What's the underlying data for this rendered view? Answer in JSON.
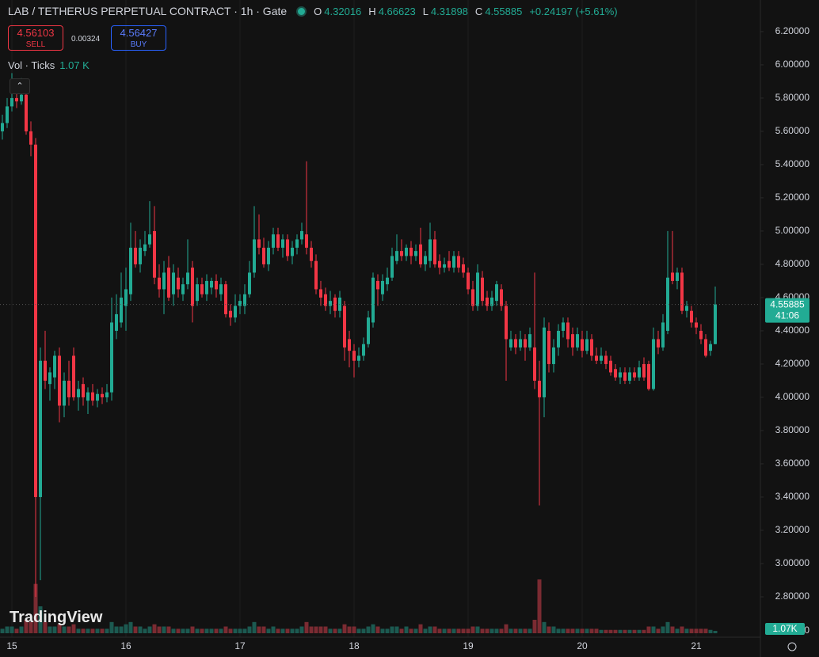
{
  "header": {
    "title": "LAB / TETHERUS PERPETUAL CONTRACT · 1h · Gate",
    "ohlc_labels": [
      "O",
      "H",
      "L",
      "C"
    ],
    "change": "+0.24197 (+5.61%)",
    "sell_price": 4.56103,
    "sell_label": "SELL",
    "spread": 0.00324,
    "buy_price": 4.56427,
    "buy_label": "BUY",
    "volume_indicator": "Vol · Ticks",
    "volume_indicator_value": "1.07 K",
    "countdown": "41:06",
    "watermark": "TradingView"
  },
  "chart_data": {
    "type": "candlestick",
    "categories": [
      null,
      null,
      "15",
      null,
      null,
      null,
      null,
      null,
      null,
      null,
      null,
      null,
      null,
      null,
      null,
      null,
      null,
      null,
      null,
      null,
      null,
      null,
      null,
      null,
      null,
      null,
      "16",
      null,
      null,
      null,
      null,
      null,
      null,
      null,
      null,
      null,
      null,
      null,
      null,
      null,
      null,
      null,
      null,
      null,
      null,
      null,
      null,
      null,
      null,
      null,
      "17",
      null,
      null,
      null,
      null,
      null,
      null,
      null,
      null,
      null,
      null,
      null,
      null,
      null,
      null,
      null,
      null,
      null,
      null,
      null,
      null,
      null,
      null,
      null,
      "18",
      null,
      null,
      null,
      null,
      null,
      null,
      null,
      null,
      null,
      null,
      null,
      null,
      null,
      null,
      null,
      null,
      null,
      null,
      null,
      null,
      null,
      null,
      null,
      "19",
      null,
      null,
      null,
      null,
      null,
      null,
      null,
      null,
      null,
      null,
      null,
      null,
      null,
      null,
      null,
      null,
      null,
      null,
      null,
      null,
      null,
      null,
      null,
      "20",
      null,
      null,
      null,
      null,
      null,
      null,
      null,
      null,
      null,
      null,
      null,
      null,
      null,
      null,
      null,
      null,
      null,
      null,
      null,
      null,
      null,
      null,
      null,
      "21",
      null,
      null,
      null,
      null
    ],
    "open": [
      5.6,
      5.65,
      5.75,
      5.8,
      5.78,
      5.82,
      5.6,
      5.52,
      3.4,
      4.22,
      4.08,
      4.12,
      4.25,
      3.95,
      4.1,
      4.25,
      4.0,
      4.08,
      3.98,
      4.03,
      3.98,
      4.02,
      4.0,
      4.03,
      4.4,
      4.45,
      4.55,
      4.62,
      4.9,
      4.8,
      4.88,
      4.92,
      5.0,
      4.72,
      4.65,
      4.78,
      4.62,
      4.72,
      4.62,
      4.68,
      4.78,
      4.58,
      4.68,
      4.62,
      4.66,
      4.7,
      4.62,
      4.68,
      4.52,
      4.48,
      4.55,
      4.55,
      4.62,
      4.75,
      4.95,
      4.9,
      4.8,
      4.9,
      4.98,
      4.9,
      4.95,
      4.85,
      4.9,
      4.95,
      4.98,
      4.9,
      4.82,
      4.65,
      4.62,
      4.55,
      4.6,
      4.52,
      4.55,
      4.35,
      4.28,
      4.22,
      4.25,
      4.32,
      4.45,
      4.7,
      4.62,
      4.68,
      4.72,
      4.82,
      4.88,
      4.85,
      4.9,
      4.85,
      4.92,
      4.8,
      4.82,
      4.95,
      4.82,
      4.78,
      4.82,
      4.78,
      4.85,
      4.8,
      4.75,
      4.65,
      4.55,
      4.72,
      4.6,
      4.55,
      4.58,
      4.65,
      4.55,
      4.3,
      4.35,
      4.3,
      4.35,
      4.3,
      4.3,
      4.1,
      4.0,
      4.4,
      4.2,
      4.3,
      4.4,
      4.45,
      4.38,
      4.3,
      4.35,
      4.28,
      4.35,
      4.25,
      4.22,
      4.25,
      4.22,
      4.17,
      4.12,
      4.15,
      4.1,
      4.15,
      4.12,
      4.2,
      4.2,
      4.05,
      4.35,
      4.3,
      4.4,
      4.75,
      4.7,
      4.75,
      4.52,
      4.52,
      4.45,
      4.4,
      4.35,
      4.28,
      4.32016
    ],
    "high": [
      5.7,
      5.8,
      5.95,
      5.88,
      5.92,
      5.84,
      5.66,
      5.56,
      4.3,
      4.4,
      4.18,
      4.28,
      4.3,
      4.15,
      4.22,
      4.3,
      4.1,
      4.12,
      4.06,
      4.08,
      4.05,
      4.06,
      4.08,
      4.6,
      4.62,
      4.75,
      4.78,
      5.05,
      5.0,
      4.95,
      5.0,
      5.18,
      5.15,
      4.8,
      4.82,
      4.85,
      4.8,
      4.78,
      4.72,
      4.95,
      4.82,
      4.72,
      4.72,
      4.74,
      4.72,
      4.74,
      4.72,
      4.7,
      4.56,
      4.62,
      4.62,
      4.68,
      4.82,
      5.15,
      5.1,
      4.96,
      4.94,
      5.02,
      5.02,
      4.98,
      4.98,
      4.94,
      4.98,
      5.05,
      5.42,
      4.94,
      4.86,
      4.7,
      4.66,
      4.64,
      4.62,
      4.64,
      4.58,
      4.4,
      4.32,
      4.3,
      4.36,
      4.52,
      4.75,
      4.74,
      4.74,
      4.78,
      4.9,
      4.98,
      4.95,
      4.92,
      4.94,
      4.92,
      5.02,
      4.88,
      5.05,
      5.0,
      4.86,
      4.84,
      4.88,
      4.88,
      4.88,
      4.84,
      4.78,
      4.7,
      4.8,
      4.76,
      4.64,
      4.64,
      4.7,
      4.68,
      4.58,
      4.4,
      4.38,
      4.4,
      4.38,
      4.42,
      4.75,
      4.22,
      4.48,
      4.45,
      4.35,
      4.44,
      4.48,
      4.48,
      4.42,
      4.42,
      4.4,
      4.4,
      4.38,
      4.3,
      4.3,
      4.28,
      4.25,
      4.2,
      4.18,
      4.18,
      4.18,
      4.18,
      4.22,
      4.24,
      4.22,
      4.42,
      4.4,
      4.5,
      5.0,
      5.0,
      4.78,
      4.78,
      4.58,
      4.55,
      4.48,
      4.44,
      4.38,
      4.34,
      4.66623
    ],
    "low": [
      5.55,
      5.62,
      5.72,
      5.74,
      5.76,
      5.58,
      5.45,
      2.8,
      2.9,
      4.05,
      3.98,
      4.05,
      3.85,
      3.88,
      3.95,
      3.98,
      3.92,
      3.95,
      3.9,
      3.95,
      3.94,
      3.96,
      3.97,
      3.98,
      4.35,
      4.42,
      4.4,
      4.58,
      4.78,
      4.75,
      4.85,
      4.9,
      4.68,
      4.6,
      4.5,
      4.58,
      4.55,
      4.6,
      4.58,
      4.65,
      4.45,
      4.55,
      4.6,
      4.58,
      4.62,
      4.6,
      4.58,
      4.48,
      4.43,
      4.45,
      4.5,
      4.5,
      4.6,
      4.72,
      4.86,
      4.78,
      4.76,
      4.86,
      4.88,
      4.84,
      4.82,
      4.8,
      4.86,
      4.92,
      4.86,
      4.78,
      4.62,
      4.55,
      4.52,
      4.5,
      4.48,
      4.48,
      4.22,
      4.18,
      4.12,
      4.18,
      4.22,
      4.3,
      4.42,
      4.55,
      4.58,
      4.64,
      4.7,
      4.8,
      4.82,
      4.82,
      4.8,
      4.82,
      4.78,
      4.76,
      4.78,
      4.78,
      4.74,
      4.75,
      4.76,
      4.75,
      4.75,
      4.72,
      4.62,
      4.52,
      4.52,
      4.55,
      4.52,
      4.52,
      4.55,
      4.52,
      4.1,
      4.28,
      4.26,
      4.28,
      4.22,
      4.28,
      4.05,
      3.35,
      3.88,
      4.15,
      4.15,
      4.25,
      4.36,
      4.3,
      4.25,
      4.28,
      4.24,
      4.26,
      4.22,
      4.2,
      4.2,
      4.17,
      4.13,
      4.1,
      4.08,
      4.08,
      4.08,
      4.1,
      4.1,
      4.1,
      4.04,
      4.04,
      4.26,
      4.28,
      4.38,
      4.68,
      4.65,
      4.5,
      4.48,
      4.42,
      4.38,
      4.32,
      4.24,
      4.25,
      4.31898
    ],
    "close": [
      5.65,
      5.75,
      5.8,
      5.78,
      5.82,
      5.6,
      5.52,
      3.4,
      4.22,
      4.1,
      4.15,
      4.25,
      3.95,
      4.1,
      4.0,
      4.0,
      4.05,
      4.0,
      4.03,
      3.98,
      4.02,
      4.0,
      4.03,
      4.45,
      4.5,
      4.6,
      4.65,
      4.9,
      4.8,
      4.9,
      4.92,
      4.98,
      4.72,
      4.65,
      4.75,
      4.6,
      4.75,
      4.65,
      4.68,
      4.75,
      4.55,
      4.68,
      4.62,
      4.7,
      4.7,
      4.65,
      4.68,
      4.5,
      4.48,
      4.55,
      4.58,
      4.62,
      4.75,
      4.95,
      4.9,
      4.8,
      4.9,
      4.98,
      4.9,
      4.95,
      4.85,
      4.9,
      4.95,
      5.0,
      4.9,
      4.82,
      4.65,
      4.6,
      4.55,
      4.58,
      4.52,
      4.6,
      4.3,
      4.28,
      4.22,
      4.25,
      4.32,
      4.48,
      4.72,
      4.65,
      4.7,
      4.72,
      4.85,
      4.88,
      4.85,
      4.9,
      4.85,
      4.88,
      4.8,
      4.85,
      4.95,
      4.8,
      4.78,
      4.8,
      4.78,
      4.85,
      4.78,
      4.75,
      4.65,
      4.55,
      4.75,
      4.58,
      4.55,
      4.6,
      4.68,
      4.55,
      4.35,
      4.35,
      4.3,
      4.35,
      4.3,
      4.38,
      4.1,
      4.0,
      4.42,
      4.2,
      4.3,
      4.4,
      4.45,
      4.35,
      4.3,
      4.38,
      4.28,
      4.35,
      4.25,
      4.22,
      4.25,
      4.2,
      4.15,
      4.12,
      4.15,
      4.1,
      4.15,
      4.12,
      4.18,
      4.12,
      4.05,
      4.35,
      4.3,
      4.45,
      4.72,
      4.7,
      4.75,
      4.52,
      4.55,
      4.45,
      4.42,
      4.35,
      4.25,
      4.32,
      4.55885
    ],
    "volume": [
      2,
      3,
      3,
      2,
      3,
      6,
      5,
      22,
      12,
      5,
      3,
      3,
      4,
      3,
      3,
      4,
      2,
      2,
      2,
      2,
      2,
      2,
      2,
      5,
      3,
      3,
      4,
      5,
      3,
      3,
      2,
      3,
      4,
      3,
      3,
      3,
      2,
      2,
      2,
      2,
      3,
      2,
      2,
      2,
      2,
      2,
      2,
      3,
      2,
      2,
      2,
      2,
      3,
      5,
      3,
      3,
      2,
      3,
      2,
      2,
      2,
      2,
      2,
      3,
      5,
      3,
      3,
      3,
      3,
      2,
      2,
      2,
      4,
      3,
      3,
      2,
      2,
      3,
      4,
      3,
      2,
      2,
      3,
      3,
      2,
      3,
      2,
      2,
      4,
      2,
      3,
      3,
      2,
      2,
      2,
      2,
      2,
      2,
      2,
      3,
      3,
      2,
      2,
      2,
      2,
      2,
      4,
      2,
      2,
      2,
      2,
      2,
      6,
      24,
      5,
      3,
      3,
      2,
      2,
      2,
      2,
      2,
      2,
      2,
      2,
      2,
      1.5,
      1.5,
      1.5,
      1.5,
      1.5,
      1.5,
      1.5,
      1.5,
      1.5,
      1.5,
      3,
      3,
      2,
      3,
      5,
      3,
      2,
      3,
      2,
      2,
      2,
      2,
      2,
      1.5,
      1.07
    ],
    "volume_last_label": "1.07K",
    "ylim": [
      2.557,
      6.39
    ],
    "yticks": [
      {
        "value": 2.8,
        "label": "2.80000"
      },
      {
        "value": 3.0,
        "label": "3.00000"
      },
      {
        "value": 3.2,
        "label": "3.20000"
      },
      {
        "value": 3.4,
        "label": "3.40000"
      },
      {
        "value": 3.6,
        "label": "3.60000"
      },
      {
        "value": 3.8,
        "label": "3.80000"
      },
      {
        "value": 4.0,
        "label": "4.00000"
      },
      {
        "value": 4.2,
        "label": "4.20000"
      },
      {
        "value": 4.4,
        "label": "4.40000"
      },
      {
        "value": 4.6,
        "label": "4.60000"
      },
      {
        "value": 4.8,
        "label": "4.80000"
      },
      {
        "value": 5.0,
        "label": "5.00000"
      },
      {
        "value": 5.2,
        "label": "5.20000"
      },
      {
        "value": 5.4,
        "label": "5.40000"
      },
      {
        "value": 5.6,
        "label": "5.60000"
      },
      {
        "value": 5.8,
        "label": "5.80000"
      },
      {
        "value": 6.0,
        "label": "6.00000"
      },
      {
        "value": 6.2,
        "label": "6.20000"
      }
    ],
    "volume_ylim": [
      0,
      30
    ],
    "volume_yticks": [
      0
    ],
    "up_color": "#22ab94",
    "down_color": "#f23645",
    "volume_up_color": "#1c5a51",
    "volume_down_color": "#7b2b32"
  }
}
